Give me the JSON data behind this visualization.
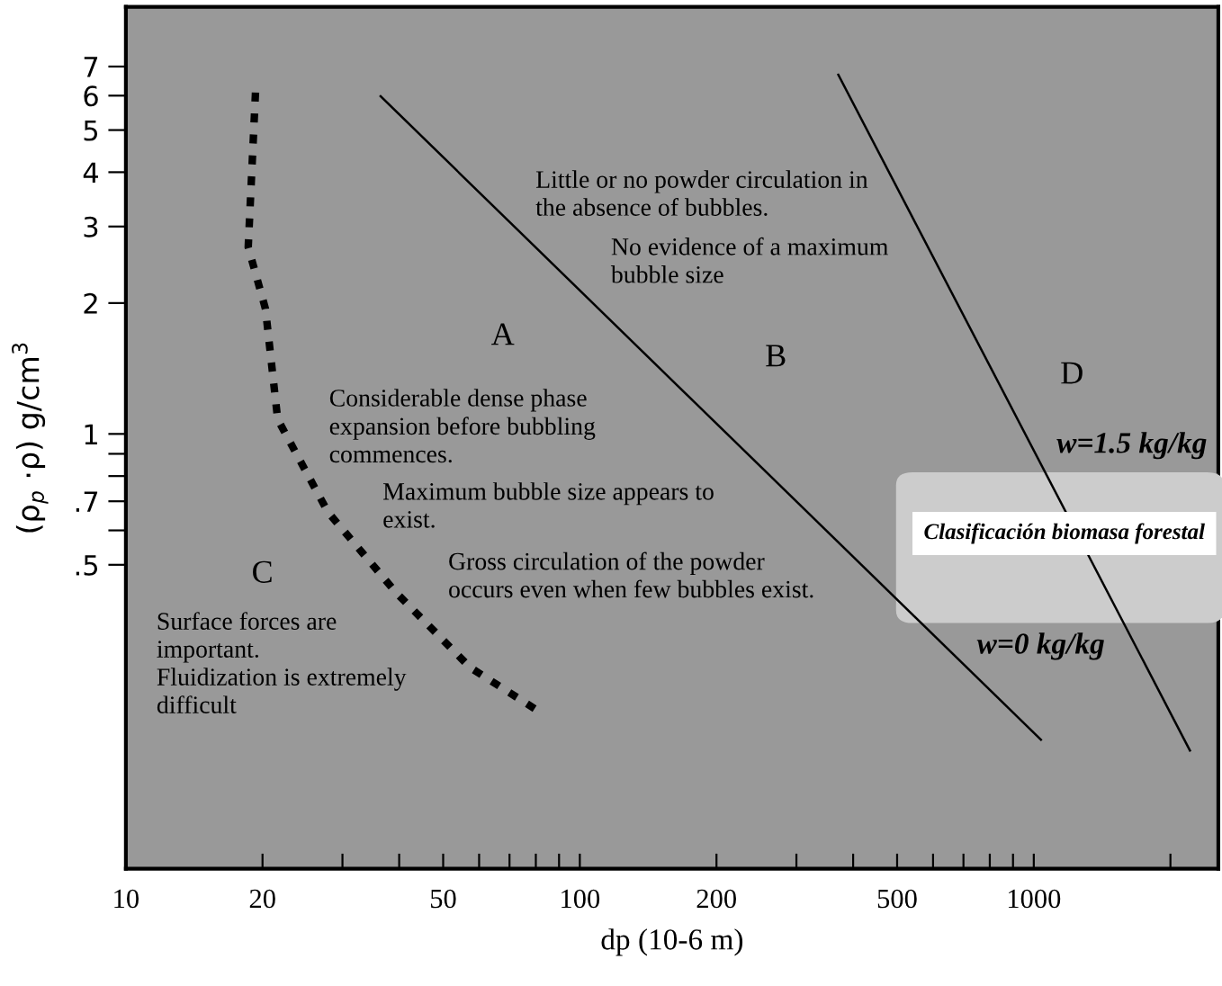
{
  "chart_data": {
    "type": "line",
    "xlabel": "dp (10-6 m)",
    "ylabel": "(ρ$_{p}$ ·ρ) g/cm$^{3}$",
    "log": "xy",
    "xlim": [
      10,
      2550
    ],
    "ylim": [
      0.1,
      9.6
    ],
    "xticks": [
      10,
      20,
      {
        "value": 30,
        "label": null
      },
      {
        "value": 40,
        "label": null
      },
      50,
      {
        "value": 60,
        "label": null
      },
      {
        "value": 70,
        "label": null
      },
      {
        "value": 80,
        "label": null
      },
      {
        "value": 90,
        "label": null
      },
      100,
      200,
      {
        "value": 300,
        "label": null
      },
      {
        "value": 400,
        "label": null
      },
      500,
      {
        "value": 600,
        "label": null
      },
      {
        "value": 700,
        "label": null
      },
      {
        "value": 800,
        "label": null
      },
      {
        "value": 900,
        "label": null
      },
      1000,
      {
        "value": 2000,
        "label": null
      }
    ],
    "yticks": [
      {
        "value": 0.5,
        "label": ".5"
      },
      {
        "value": 0.6,
        "label": null
      },
      {
        "value": 0.7,
        "label": ".7"
      },
      {
        "value": 0.8,
        "label": null
      },
      {
        "value": 0.9,
        "label": null
      },
      1,
      2,
      3,
      4,
      5,
      6,
      7
    ],
    "grid": false,
    "marker": "none",
    "series": [
      {
        "color": "#000000",
        "line_style": "dashed",
        "x": [
          19.3,
          18.6,
          20.3,
          21.6,
          27.9,
          39.5,
          57.4,
          79.7
        ],
        "values": [
          6.1,
          2.69,
          1.94,
          1.08,
          0.66,
          0.43,
          0.29,
          0.233
        ]
      },
      {
        "color": "#000000",
        "line_style": "solid",
        "x": [
          36.4,
          1037
        ],
        "values": [
          5.98,
          0.198
        ]
      },
      {
        "color": "#000000",
        "line_style": "solid",
        "x": [
          371,
          2208
        ],
        "values": [
          6.7,
          0.187
        ]
      }
    ],
    "annotations": [
      "A",
      "B",
      "C",
      "D",
      "Little or no powder circulation in\nthe absence of bubbles.",
      "No evidence of a maximum\nbubble size",
      "Considerable dense phase\nexpansion before bubbling\ncommences.",
      "Maximum bubble size appears to\nexist.",
      "Gross circulation of the powder\noccurs even when few bubbles exist.",
      "Surface forces are\nimportant.\nFluidization is extremely\ndifficult",
      "w=1.5 kg/kg",
      "w=0 kg/kg",
      "Clasificación biomasa forestal"
    ]
  }
}
